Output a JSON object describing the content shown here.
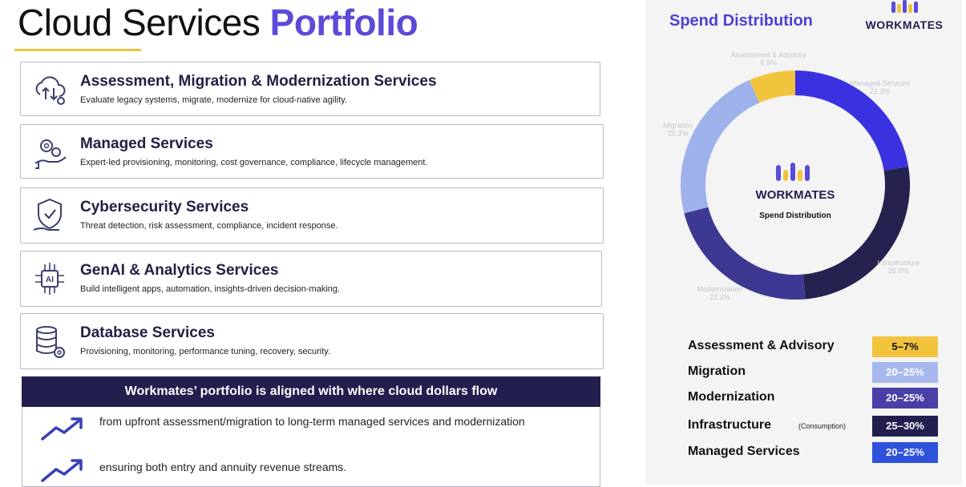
{
  "title": {
    "main": "Cloud Services",
    "accent": "Portfolio"
  },
  "services": [
    {
      "icon": "cloud-migration-icon",
      "name": "Assessment, Migration & Modernization Services",
      "desc": "Evaluate legacy systems, migrate, modernize for cloud-native agility."
    },
    {
      "icon": "gears-hand-icon",
      "name": "Managed Services",
      "desc": "Expert-led provisioning, monitoring, cost governance, compliance, lifecycle management."
    },
    {
      "icon": "shield-check-icon",
      "name": "Cybersecurity Services",
      "desc": "Threat detection, risk assessment, compliance, incident response."
    },
    {
      "icon": "ai-chip-icon",
      "name": "GenAI & Analytics Services",
      "desc": "Build intelligent apps, automation, insights-driven decision-making."
    },
    {
      "icon": "database-gear-icon",
      "name": "Database Services",
      "desc": "Provisioning, monitoring, performance tuning, recovery, security."
    }
  ],
  "banner": "Workmates’ portfolio is aligned with where cloud dollars flow",
  "bullets": [
    "from upfront assessment/migration to long-term managed services and modernization",
    "ensuring both entry and annuity revenue streams."
  ],
  "spend": {
    "title": "Spend Distribution",
    "brand": "WORKMATES",
    "center_brand": "WORKMATES",
    "center_label": "Spend Distribution"
  },
  "chart_data": {
    "type": "pie",
    "categories": [
      "Managed Services",
      "Infrastructure",
      "Modernization",
      "Migration",
      "Assessment & Advisory"
    ],
    "values": [
      22.3,
      26.0,
      22.3,
      22.3,
      6.5
    ],
    "labels": [
      "Managed Services 22.3%",
      "Infrastructure 26.0%",
      "Modernization 22.3%",
      "Migration 22.3%",
      "Assessment & Advisory 6.5%"
    ],
    "colors": [
      "#3a32e0",
      "#25224f",
      "#3d3992",
      "#9fb1ea",
      "#f2c43d"
    ]
  },
  "legend": [
    {
      "name": "Assessment & Advisory",
      "note": "",
      "range": "5–7%",
      "bg": "#f2c43d",
      "fg": "#111111"
    },
    {
      "name": "Migration",
      "note": "",
      "range": "20–25%",
      "bg": "#a7b8ee",
      "fg": "#ffffff"
    },
    {
      "name": "Modernization",
      "note": "",
      "range": "20–25%",
      "bg": "#4a3fa6",
      "fg": "#ffffff"
    },
    {
      "name": "Infrastructure",
      "note": "(Consumption)",
      "range": "25–30%",
      "bg": "#221f4f",
      "fg": "#ffffff"
    },
    {
      "name": "Managed Services",
      "note": "",
      "range": "20–25%",
      "bg": "#2f52dc",
      "fg": "#ffffff"
    }
  ]
}
